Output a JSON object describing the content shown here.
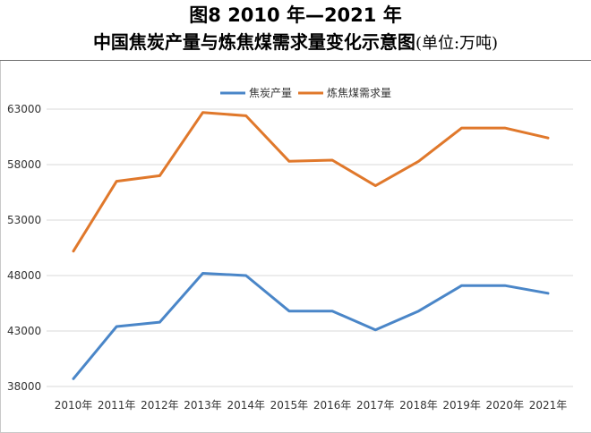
{
  "title": {
    "line1": "图8 2010 年—2021 年",
    "line2_main": "中国焦炭产量与炼焦煤需求量变化示意图",
    "line2_unit": "(单位:万吨)"
  },
  "chart_data": {
    "type": "line",
    "categories": [
      "2010年",
      "2011年",
      "2012年",
      "2013年",
      "2014年",
      "2015年",
      "2016年",
      "2017年",
      "2018年",
      "2019年",
      "2020年",
      "2021年"
    ],
    "series": [
      {
        "name": "焦炭产量",
        "color": "#4a86c8",
        "values": [
          38700,
          43400,
          43800,
          48200,
          48000,
          44800,
          44800,
          43100,
          44800,
          47100,
          47100,
          46400
        ]
      },
      {
        "name": "炼焦煤需求量",
        "color": "#e0782b",
        "values": [
          50200,
          56500,
          57000,
          62700,
          62400,
          58300,
          58400,
          56100,
          58300,
          61300,
          61300,
          60400
        ]
      }
    ],
    "y_ticks": [
      "38000",
      "43000",
      "48000",
      "53000",
      "58000",
      "63000"
    ],
    "ylim": [
      38000,
      63000
    ],
    "grid": true,
    "legend_position": "top-center"
  }
}
